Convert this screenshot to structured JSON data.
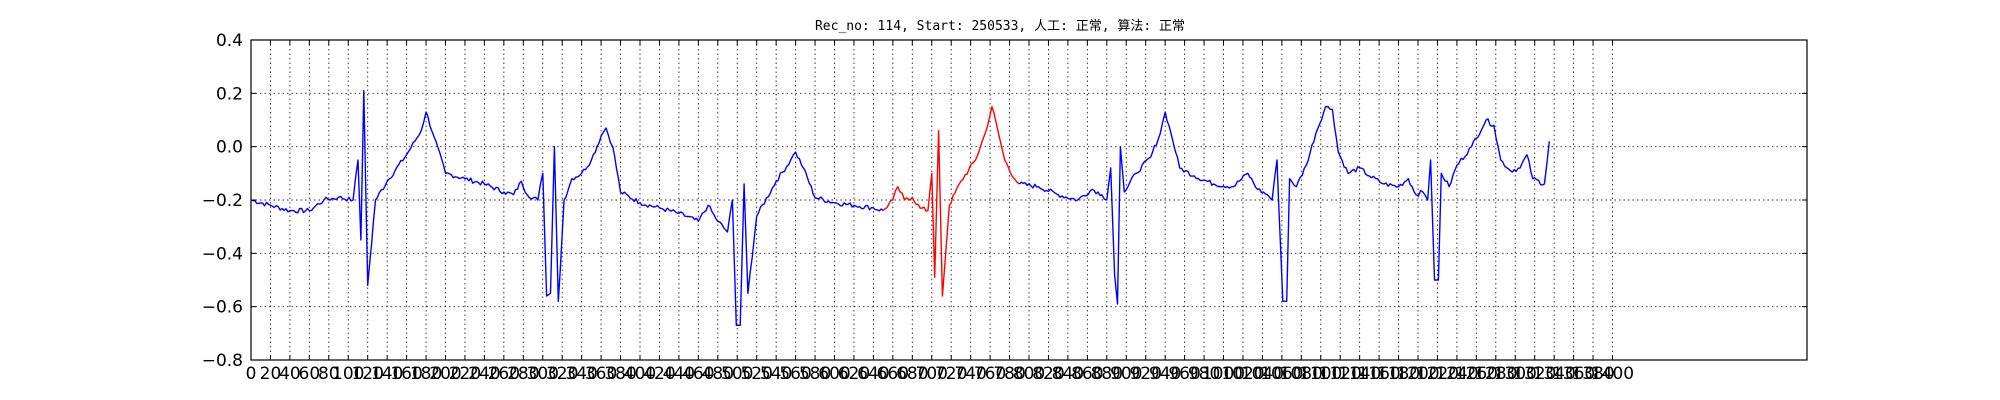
{
  "chart_data": {
    "type": "line",
    "title": "Rec_no: 114, Start: 250533, 人工: 正常, 算法: 正常",
    "xlabel": "",
    "ylabel": "",
    "xlim": [
      0,
      1600
    ],
    "ylim": [
      -0.8,
      0.4
    ],
    "grid": true,
    "legend": "none",
    "yticks": [
      0.4,
      0.2,
      0.0,
      -0.2,
      -0.4,
      -0.6,
      -0.8
    ],
    "ytick_labels": [
      "0.4",
      "0.2",
      "0.0",
      "−0.2",
      "−0.4",
      "−0.6",
      "−0.8"
    ],
    "xticks": [
      0,
      20,
      40,
      60,
      80,
      100,
      120,
      140,
      160,
      180,
      200,
      220,
      240,
      260,
      280,
      300,
      320,
      340,
      360,
      380,
      400,
      420,
      440,
      460,
      480,
      500,
      520,
      540,
      560,
      580,
      600,
      620,
      640,
      660,
      680,
      700,
      720,
      740,
      760,
      780,
      800,
      820,
      840,
      860,
      880,
      900,
      920,
      940,
      960,
      980,
      1000,
      1020,
      1040,
      1060,
      1080,
      1100,
      1120,
      1140,
      1160,
      1180,
      1200,
      1220,
      1240,
      1260,
      1280,
      1300,
      1320,
      1340,
      1360,
      1380,
      1400
    ],
    "colors": {
      "signal": "#0000ff",
      "highlight": "#ff0000"
    },
    "series": [
      {
        "color": "#0000ff",
        "points": [
          [
            0,
            -0.2
          ],
          [
            20,
            -0.22
          ],
          [
            40,
            -0.24
          ],
          [
            60,
            -0.24
          ],
          [
            75,
            -0.2
          ],
          [
            90,
            -0.19
          ],
          [
            105,
            -0.2
          ],
          [
            110,
            -0.05
          ],
          [
            113,
            -0.35
          ],
          [
            116,
            0.21
          ],
          [
            120,
            -0.52
          ],
          [
            128,
            -0.2
          ],
          [
            140,
            -0.13
          ],
          [
            160,
            -0.03
          ],
          [
            175,
            0.06
          ],
          [
            180,
            0.13
          ],
          [
            188,
            0.04
          ],
          [
            200,
            -0.1
          ],
          [
            220,
            -0.12
          ],
          [
            240,
            -0.14
          ],
          [
            260,
            -0.17
          ],
          [
            270,
            -0.18
          ],
          [
            278,
            -0.13
          ],
          [
            284,
            -0.18
          ],
          [
            295,
            -0.2
          ],
          [
            300,
            -0.1
          ],
          [
            304,
            -0.56
          ],
          [
            308,
            -0.55
          ],
          [
            312,
            0.0
          ],
          [
            316,
            -0.58
          ],
          [
            322,
            -0.2
          ],
          [
            330,
            -0.12
          ],
          [
            340,
            -0.1
          ],
          [
            350,
            -0.05
          ],
          [
            360,
            0.04
          ],
          [
            365,
            0.07
          ],
          [
            372,
            0.0
          ],
          [
            380,
            -0.17
          ],
          [
            400,
            -0.21
          ],
          [
            420,
            -0.23
          ],
          [
            440,
            -0.25
          ],
          [
            460,
            -0.28
          ],
          [
            470,
            -0.22
          ],
          [
            478,
            -0.27
          ],
          [
            490,
            -0.32
          ],
          [
            495,
            -0.2
          ],
          [
            499,
            -0.67
          ],
          [
            503,
            -0.67
          ],
          [
            507,
            -0.14
          ],
          [
            511,
            -0.55
          ],
          [
            520,
            -0.26
          ],
          [
            540,
            -0.13
          ],
          [
            555,
            -0.05
          ],
          [
            560,
            -0.02
          ],
          [
            568,
            -0.08
          ],
          [
            580,
            -0.19
          ],
          [
            600,
            -0.21
          ],
          [
            620,
            -0.22
          ],
          [
            640,
            -0.23
          ],
          [
            650,
            -0.24
          ]
        ]
      },
      {
        "color": "#ff0000",
        "points": [
          [
            650,
            -0.24
          ],
          [
            660,
            -0.2
          ],
          [
            665,
            -0.15
          ],
          [
            672,
            -0.2
          ],
          [
            680,
            -0.19
          ],
          [
            688,
            -0.23
          ],
          [
            696,
            -0.24
          ],
          [
            700,
            -0.1
          ],
          [
            703,
            -0.49
          ],
          [
            707,
            0.06
          ],
          [
            711,
            -0.56
          ],
          [
            718,
            -0.22
          ],
          [
            730,
            -0.13
          ],
          [
            745,
            -0.05
          ],
          [
            755,
            0.05
          ],
          [
            762,
            0.15
          ],
          [
            768,
            0.06
          ],
          [
            775,
            -0.05
          ],
          [
            785,
            -0.12
          ],
          [
            790,
            -0.14
          ]
        ]
      },
      {
        "color": "#0000ff",
        "points": [
          [
            790,
            -0.14
          ],
          [
            810,
            -0.15
          ],
          [
            830,
            -0.18
          ],
          [
            850,
            -0.2
          ],
          [
            865,
            -0.16
          ],
          [
            875,
            -0.18
          ],
          [
            880,
            -0.2
          ],
          [
            884,
            -0.08
          ],
          [
            888,
            -0.48
          ],
          [
            891,
            -0.59
          ],
          [
            894,
            0.0
          ],
          [
            898,
            -0.17
          ],
          [
            910,
            -0.1
          ],
          [
            925,
            -0.04
          ],
          [
            935,
            0.05
          ],
          [
            940,
            0.13
          ],
          [
            946,
            0.05
          ],
          [
            955,
            -0.08
          ],
          [
            970,
            -0.11
          ],
          [
            990,
            -0.14
          ],
          [
            1010,
            -0.15
          ],
          [
            1025,
            -0.1
          ],
          [
            1035,
            -0.16
          ],
          [
            1045,
            -0.18
          ],
          [
            1050,
            -0.2
          ],
          [
            1055,
            -0.05
          ],
          [
            1061,
            -0.58
          ],
          [
            1065,
            -0.58
          ],
          [
            1068,
            -0.12
          ],
          [
            1075,
            -0.15
          ],
          [
            1085,
            -0.07
          ],
          [
            1095,
            0.05
          ],
          [
            1105,
            0.15
          ],
          [
            1112,
            0.14
          ],
          [
            1118,
            -0.02
          ],
          [
            1128,
            -0.1
          ],
          [
            1140,
            -0.08
          ],
          [
            1150,
            -0.11
          ],
          [
            1165,
            -0.14
          ],
          [
            1180,
            -0.15
          ],
          [
            1190,
            -0.12
          ],
          [
            1198,
            -0.18
          ],
          [
            1205,
            -0.17
          ],
          [
            1210,
            -0.2
          ],
          [
            1213,
            -0.05
          ],
          [
            1217,
            -0.5
          ],
          [
            1221,
            -0.5
          ],
          [
            1224,
            -0.1
          ],
          [
            1232,
            -0.15
          ],
          [
            1240,
            -0.07
          ],
          [
            1255,
            0.0
          ],
          [
            1270,
            0.1
          ],
          [
            1278,
            0.08
          ],
          [
            1285,
            -0.05
          ],
          [
            1295,
            -0.09
          ],
          [
            1305,
            -0.08
          ],
          [
            1312,
            -0.03
          ],
          [
            1318,
            -0.12
          ],
          [
            1330,
            -0.14
          ],
          [
            1335,
            0.02
          ]
        ]
      }
    ]
  }
}
